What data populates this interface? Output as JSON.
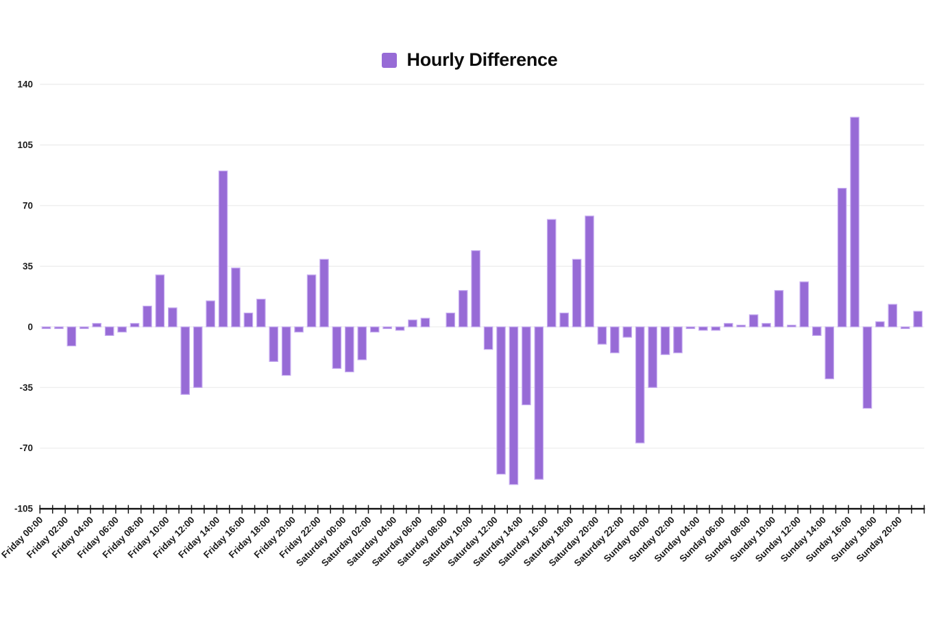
{
  "header": {
    "title": "Hourly Difference"
  },
  "legend": {
    "label": "Hourly Difference",
    "swatch_color": "#976bd6"
  },
  "chart_data": {
    "type": "bar",
    "title": "Hourly Difference",
    "legend_position": "top-center",
    "grid": "horizontal-only",
    "bar_color": "#976bd6",
    "bar_border_color": "#c7adf1",
    "axis_color": "#161616",
    "grid_color": "#ebebeb",
    "ylim": [
      -105,
      140
    ],
    "y_ticks": [
      140,
      105,
      70,
      35,
      0,
      -35,
      -70,
      -105
    ],
    "x_tick_labels_visible": [
      "Friday 00:00",
      "Friday 02:00",
      "Friday 04:00",
      "Friday 06:00",
      "Friday 08:00",
      "Friday 10:00",
      "Friday 12:00",
      "Friday 14:00",
      "Friday 16:00",
      "Friday 18:00",
      "Friday 20:00",
      "Friday 22:00",
      "Saturday 00:00",
      "Saturday 02:00",
      "Saturday 04:00",
      "Saturday 06:00",
      "Saturday 08:00",
      "Saturday 10:00",
      "Saturday 12:00",
      "Saturday 14:00",
      "Saturday 16:00",
      "Saturday 18:00",
      "Saturday 20:00",
      "Saturday 22:00",
      "Sunday 00:00",
      "Sunday 02:00",
      "Sunday 04:00",
      "Sunday 06:00",
      "Sunday 08:00",
      "Sunday 10:00",
      "Sunday 12:00",
      "Sunday 14:00",
      "Sunday 16:00",
      "Sunday 18:00",
      "Sunday 20:00"
    ],
    "x": [
      "Friday 00:00",
      "Friday 01:00",
      "Friday 02:00",
      "Friday 03:00",
      "Friday 04:00",
      "Friday 05:00",
      "Friday 06:00",
      "Friday 07:00",
      "Friday 08:00",
      "Friday 09:00",
      "Friday 10:00",
      "Friday 11:00",
      "Friday 12:00",
      "Friday 13:00",
      "Friday 14:00",
      "Friday 15:00",
      "Friday 16:00",
      "Friday 17:00",
      "Friday 18:00",
      "Friday 19:00",
      "Friday 20:00",
      "Friday 21:00",
      "Friday 22:00",
      "Friday 23:00",
      "Saturday 00:00",
      "Saturday 01:00",
      "Saturday 02:00",
      "Saturday 03:00",
      "Saturday 04:00",
      "Saturday 05:00",
      "Saturday 06:00",
      "Saturday 07:00",
      "Saturday 08:00",
      "Saturday 09:00",
      "Saturday 10:00",
      "Saturday 11:00",
      "Saturday 12:00",
      "Saturday 13:00",
      "Saturday 14:00",
      "Saturday 15:00",
      "Saturday 16:00",
      "Saturday 17:00",
      "Saturday 18:00",
      "Saturday 19:00",
      "Saturday 20:00",
      "Saturday 21:00",
      "Saturday 22:00",
      "Saturday 23:00",
      "Sunday 00:00",
      "Sunday 01:00",
      "Sunday 02:00",
      "Sunday 03:00",
      "Sunday 04:00",
      "Sunday 05:00",
      "Sunday 06:00",
      "Sunday 07:00",
      "Sunday 08:00",
      "Sunday 09:00",
      "Sunday 10:00",
      "Sunday 11:00",
      "Sunday 12:00",
      "Sunday 13:00",
      "Sunday 14:00",
      "Sunday 15:00",
      "Sunday 16:00",
      "Sunday 17:00",
      "Sunday 18:00",
      "Sunday 19:00",
      "Sunday 20:00",
      "Sunday 21:00"
    ],
    "values": [
      -1,
      -1,
      -11,
      -1,
      2,
      -5,
      -3,
      2,
      12,
      30,
      11,
      -39,
      -35,
      15,
      90,
      34,
      8,
      16,
      -20,
      -28,
      -3,
      30,
      39,
      -24,
      -26,
      -19,
      -3,
      -1,
      -2,
      4,
      5,
      0,
      8,
      21,
      44,
      -13,
      -85,
      -91,
      -45,
      -88,
      62,
      8,
      39,
      64,
      -10,
      -15,
      -6,
      -67,
      -35,
      -16,
      -15,
      -1,
      -2,
      -2,
      2,
      1,
      7,
      2,
      21,
      1,
      26,
      -5,
      -30,
      80,
      121,
      -47,
      3,
      13,
      -1,
      9
    ]
  }
}
